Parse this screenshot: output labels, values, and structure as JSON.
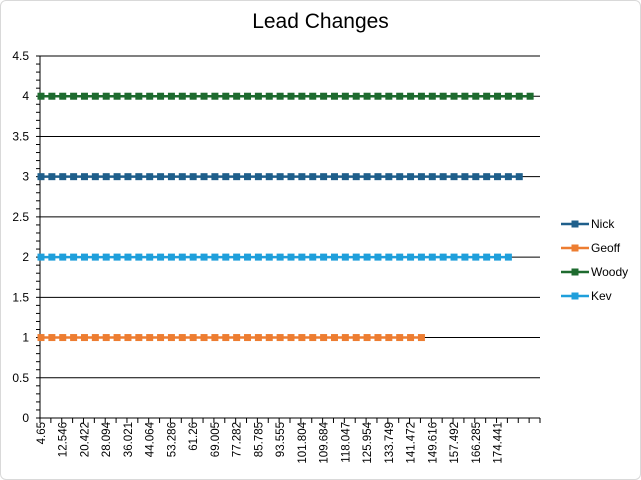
{
  "chart_data": {
    "type": "line",
    "title": "Lead Changes",
    "xlabel": "",
    "ylabel": "",
    "ylim": [
      0,
      4.5
    ],
    "y_ticks": [
      "0",
      "0.5",
      "1",
      "1.5",
      "2",
      "2.5",
      "3",
      "3.5",
      "4",
      "4.5"
    ],
    "x_tick_labels": [
      "4.65",
      "12.546",
      "20.422",
      "28.094",
      "36.021",
      "44.064",
      "53.286",
      "61.26",
      "69.005",
      "77.282",
      "85.785",
      "93.555",
      "101.804",
      "109.684",
      "118.047",
      "125.954",
      "133.749",
      "141.472",
      "149.616",
      "157.492",
      "166.285",
      "174.441"
    ],
    "x_category_count": 46,
    "grid": "horizontal major gridlines",
    "legend_position": "right",
    "series": [
      {
        "name": "Nick",
        "color": "#1f5f8b",
        "value": 3,
        "point_count": 45
      },
      {
        "name": "Geoff",
        "color": "#ed7d31",
        "value": 1,
        "point_count": 36
      },
      {
        "name": "Woody",
        "color": "#1e6b2f",
        "value": 4,
        "point_count": 46
      },
      {
        "name": "Kev",
        "color": "#1f9fdb",
        "value": 2,
        "point_count": 44
      }
    ]
  }
}
